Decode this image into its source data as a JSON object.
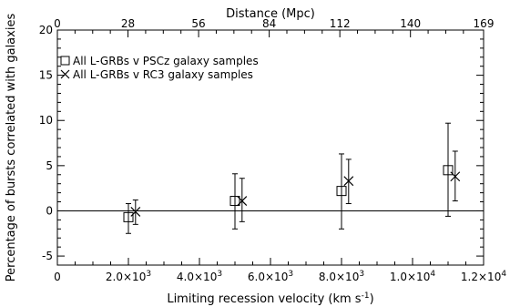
{
  "chart_data": {
    "type": "scatter",
    "xlabel_html": "Limiting recession velocity (km s",
    "xlabel_sup": "-1",
    "xlabel_close": ")",
    "ylabel": "Percentage of bursts correlated with galaxies",
    "top_xlabel": "Distance (Mpc)",
    "xlim": [
      0,
      12000
    ],
    "ylim": [
      -6,
      20
    ],
    "bottom_ticks": [
      {
        "value": 0,
        "label": "0",
        "sup": ""
      },
      {
        "value": 2000,
        "label": "2.0×10",
        "sup": "3"
      },
      {
        "value": 4000,
        "label": "4.0×10",
        "sup": "3"
      },
      {
        "value": 6000,
        "label": "6.0×10",
        "sup": "3"
      },
      {
        "value": 8000,
        "label": "8.0×10",
        "sup": "3"
      },
      {
        "value": 10000,
        "label": "1.0×10",
        "sup": "4"
      },
      {
        "value": 12000,
        "label": "1.2×10",
        "sup": "4"
      }
    ],
    "top_ticks": [
      {
        "value": 0,
        "label": "0"
      },
      {
        "value": 28,
        "label": "28"
      },
      {
        "value": 56,
        "label": "56"
      },
      {
        "value": 84,
        "label": "84"
      },
      {
        "value": 112,
        "label": "112"
      },
      {
        "value": 140,
        "label": "140"
      },
      {
        "value": 169,
        "label": "169"
      }
    ],
    "top_axis_max": 169,
    "y_ticks": [
      {
        "value": -5,
        "label": "-5"
      },
      {
        "value": 0,
        "label": "0"
      },
      {
        "value": 5,
        "label": "5"
      },
      {
        "value": 10,
        "label": "10"
      },
      {
        "value": 15,
        "label": "15"
      },
      {
        "value": 20,
        "label": "20"
      }
    ],
    "reference_line_y": 0,
    "legend_position": "top-left",
    "series": [
      {
        "name": "All L-GRBs v PSCz galaxy samples",
        "marker": "square",
        "points": [
          {
            "x": 2000,
            "y": -0.7,
            "ylow": -2.5,
            "yhigh": 0.8
          },
          {
            "x": 5000,
            "y": 1.1,
            "ylow": -2.0,
            "yhigh": 4.1
          },
          {
            "x": 8000,
            "y": 2.2,
            "ylow": -2.0,
            "yhigh": 6.3
          },
          {
            "x": 11000,
            "y": 4.5,
            "ylow": -0.6,
            "yhigh": 9.7
          }
        ]
      },
      {
        "name": "All L-GRBs v RC3 galaxy samples",
        "marker": "cross",
        "points": [
          {
            "x": 2200,
            "y": -0.1,
            "ylow": -1.5,
            "yhigh": 1.2
          },
          {
            "x": 5200,
            "y": 1.1,
            "ylow": -1.2,
            "yhigh": 3.6
          },
          {
            "x": 8200,
            "y": 3.3,
            "ylow": 0.8,
            "yhigh": 5.7
          },
          {
            "x": 11200,
            "y": 3.8,
            "ylow": 1.1,
            "yhigh": 6.6
          }
        ]
      }
    ]
  }
}
